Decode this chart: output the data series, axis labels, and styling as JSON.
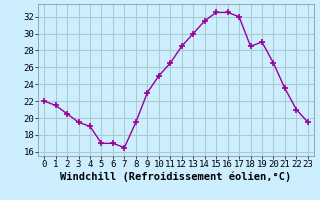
{
  "x": [
    0,
    1,
    2,
    3,
    4,
    5,
    6,
    7,
    8,
    9,
    10,
    11,
    12,
    13,
    14,
    15,
    16,
    17,
    18,
    19,
    20,
    21,
    22,
    23
  ],
  "y": [
    22.0,
    21.5,
    20.5,
    19.5,
    19.0,
    17.0,
    17.0,
    16.5,
    19.5,
    23.0,
    25.0,
    26.5,
    28.5,
    30.0,
    31.5,
    32.5,
    32.5,
    32.0,
    28.5,
    29.0,
    26.5,
    23.5,
    21.0,
    19.5
  ],
  "line_color": "#990099",
  "marker": "+",
  "marker_size": 5,
  "marker_lw": 1.2,
  "bg_color": "#cceeff",
  "grid_color": "#aacccc",
  "xlabel": "Windchill (Refroidissement éolien,°C)",
  "ylabel": "",
  "ylim": [
    15.5,
    33.5
  ],
  "yticks": [
    16,
    18,
    20,
    22,
    24,
    26,
    28,
    30,
    32
  ],
  "xticks": [
    0,
    1,
    2,
    3,
    4,
    5,
    6,
    7,
    8,
    9,
    10,
    11,
    12,
    13,
    14,
    15,
    16,
    17,
    18,
    19,
    20,
    21,
    22,
    23
  ],
  "tick_fontsize": 6.5,
  "xlabel_fontsize": 7.5,
  "line_width": 1.0
}
